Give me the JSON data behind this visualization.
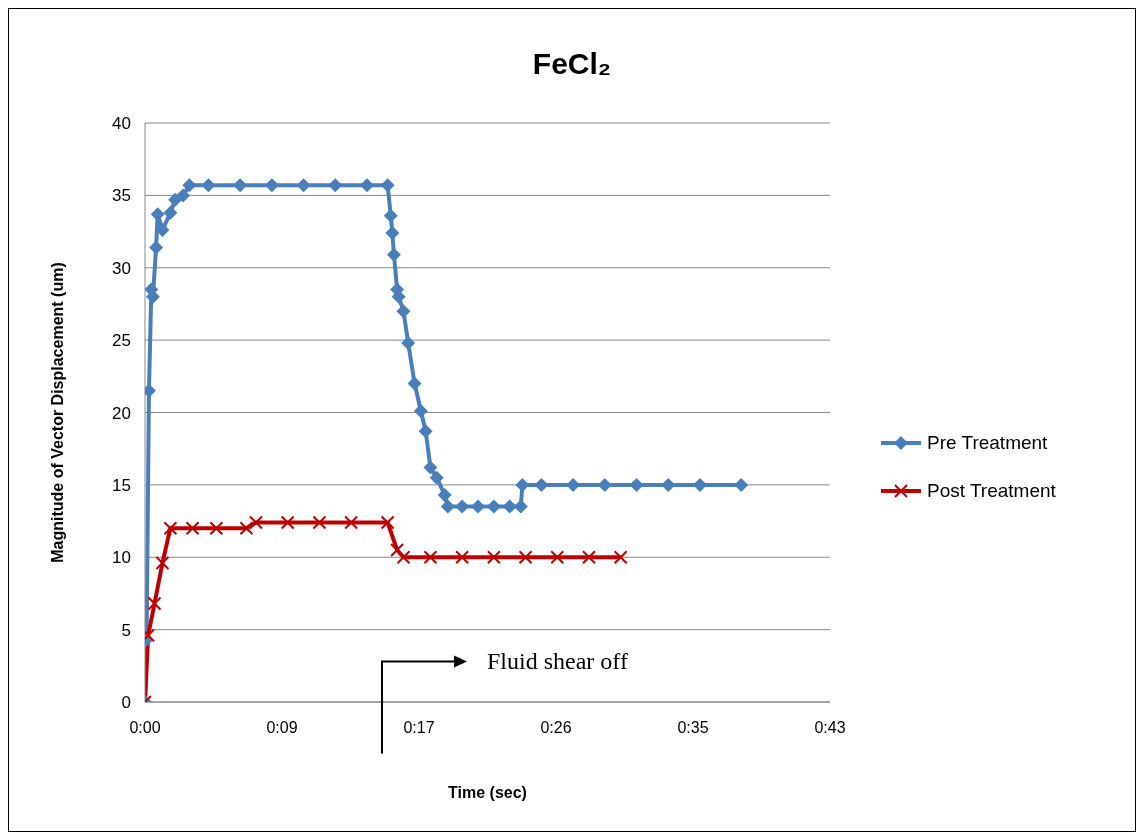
{
  "chart_data": {
    "type": "line",
    "title": "FeCl₂",
    "xlabel": "Time (sec)",
    "ylabel": "Magnitude of Vector Displacement (um)",
    "xlim": [
      0,
      43.2
    ],
    "xticks": [
      {
        "value": 0,
        "label": "0:00"
      },
      {
        "value": 8.64,
        "label": "0:09"
      },
      {
        "value": 17.28,
        "label": "0:17"
      },
      {
        "value": 25.92,
        "label": "0:26"
      },
      {
        "value": 34.56,
        "label": "0:35"
      },
      {
        "value": 43.2,
        "label": "0:43"
      }
    ],
    "ylim": [
      0,
      40
    ],
    "yticks": [
      0,
      5,
      10,
      15,
      20,
      25,
      30,
      35,
      40
    ],
    "grid": "y",
    "legend": "right",
    "annotations": [
      "Fluid shear off"
    ],
    "series": [
      {
        "name": "Pre Treatment",
        "color": "#4a7ebb",
        "marker": "diamond",
        "x": [
          0,
          0.1,
          0.25,
          0.4,
          0.5,
          0.7,
          0.8,
          1.1,
          1.6,
          1.9,
          2.4,
          2.8,
          4,
          6,
          8,
          10,
          12,
          14,
          15.3,
          15.5,
          15.6,
          15.7,
          15.9,
          16,
          16.3,
          16.6,
          17,
          17.4,
          17.7,
          18,
          18.4,
          18.9,
          19.1,
          20,
          21,
          22,
          23,
          23.7,
          23.8,
          25,
          27,
          29,
          31,
          33,
          35,
          37.6
        ],
        "values": [
          0,
          4.3,
          21.5,
          28.5,
          28,
          31.4,
          33.7,
          32.6,
          33.8,
          34.7,
          35,
          35.7,
          35.7,
          35.7,
          35.7,
          35.7,
          35.7,
          35.7,
          35.7,
          33.6,
          32.4,
          30.9,
          28.5,
          28,
          27,
          24.8,
          22,
          20.1,
          18.7,
          16.2,
          15.5,
          14.3,
          13.5,
          13.5,
          13.5,
          13.5,
          13.5,
          13.5,
          15,
          15,
          15,
          15,
          15,
          15,
          15,
          15
        ]
      },
      {
        "name": "Post Treatment",
        "color": "#c00000",
        "marker": "cross",
        "x": [
          0,
          0.2,
          0.6,
          1.1,
          1.6,
          3,
          4.5,
          6.4,
          7,
          9,
          11,
          13,
          15.3,
          15.9,
          16.3,
          18,
          20,
          22,
          24,
          26,
          28,
          30
        ],
        "values": [
          0,
          4.6,
          6.8,
          9.6,
          12,
          12,
          12,
          12,
          12.4,
          12.4,
          12.4,
          12.4,
          12.4,
          10.5,
          10,
          10,
          10,
          10,
          10,
          10,
          10,
          10
        ]
      }
    ]
  }
}
